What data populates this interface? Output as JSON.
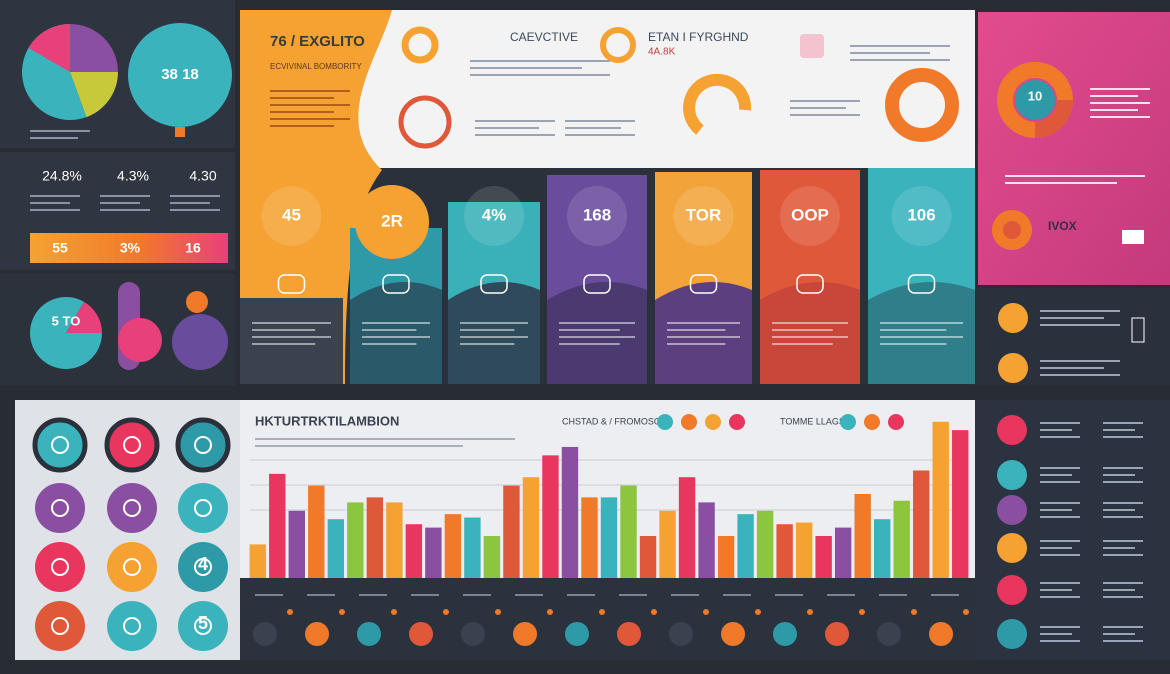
{
  "top_left": {
    "pie_label": "38 18"
  },
  "stats": {
    "items": [
      "24.8%",
      "4.3%",
      "4.30"
    ],
    "strip": [
      "55",
      "3%",
      "16"
    ]
  },
  "mini_pie": {
    "label": "5 TO"
  },
  "header": {
    "title": "76 / EXGLITO",
    "subtitle": "ECVIVINAL BOMBORITY",
    "badge_1": "CAEVCTIVE",
    "badge_2": "ETAN I FYRGHND",
    "badge_2_value": "4A.8K"
  },
  "cards": [
    {
      "value": "45",
      "color": "#f0a030"
    },
    {
      "value": "2R",
      "color": "#2e9aa8"
    },
    {
      "value": "4%",
      "color": "#3ab0b8"
    },
    {
      "value": "168",
      "color": "#6a4c9c"
    },
    {
      "value": "TOR",
      "color": "#f2a43a"
    },
    {
      "value": "OOP",
      "color": "#e0583a"
    },
    {
      "value": "106",
      "color": "#3ab3bd"
    }
  ],
  "right_panel": {
    "donut_label": "10",
    "tag": "IVOX"
  },
  "icon_grid": {
    "labels": [
      "4",
      "5"
    ]
  },
  "bar_chart": {
    "title": "HKTURTRKTILAMBION",
    "legend_1": "CHSTAD & / FROMOSOR",
    "legend_2": "TOMME LLAGS",
    "ylim": [
      0,
      100
    ],
    "values": [
      20,
      62,
      40,
      55,
      35,
      45,
      48,
      45,
      32,
      30,
      38,
      36,
      25,
      55,
      60,
      73,
      78,
      48,
      48,
      55,
      25,
      40,
      60,
      45,
      25,
      38,
      40,
      32,
      33,
      25,
      30,
      50,
      35,
      46,
      64,
      93,
      88
    ],
    "palette": [
      "#f5a233",
      "#e8365f",
      "#8a4fa0",
      "#f07a2a",
      "#3ab3bd",
      "#8cc63f",
      "#e0583a"
    ]
  }
}
